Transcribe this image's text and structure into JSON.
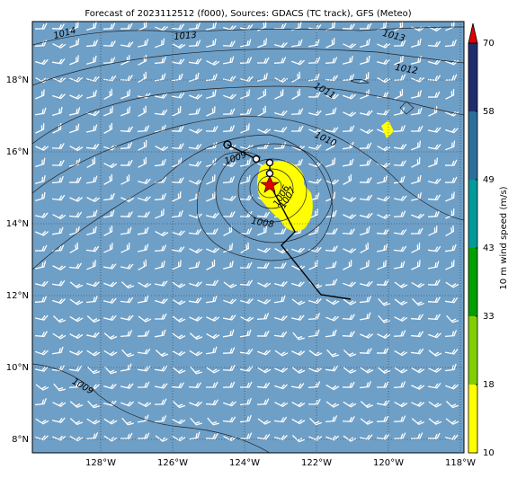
{
  "map": {
    "title": "Forecast of 2023112512 (f000), Sources: GDACS (TC track), GFS (Meteo)",
    "lon_ticks": [
      {
        "value": -128,
        "label": "128°W"
      },
      {
        "value": -126,
        "label": "126°W"
      },
      {
        "value": -124,
        "label": "124°W"
      },
      {
        "value": -122,
        "label": "122°W"
      },
      {
        "value": -120,
        "label": "120°W"
      },
      {
        "value": -118,
        "label": "118°W"
      }
    ],
    "lat_ticks": [
      {
        "value": 18,
        "label": "18°N"
      },
      {
        "value": 16,
        "label": "16°N"
      },
      {
        "value": 14,
        "label": "14°N"
      },
      {
        "value": 12,
        "label": "12°N"
      },
      {
        "value": 10,
        "label": "10°N"
      },
      {
        "value": 8,
        "label": "8°N"
      }
    ],
    "isobar_labels": [
      "1014",
      "1013",
      "1013",
      "1012",
      "1011",
      "1010",
      "1009",
      "1008",
      "1007",
      "1006",
      "1009"
    ],
    "colorbar": {
      "label": "10 m wind speed (m/s)",
      "ticks": [
        10,
        18,
        33,
        43,
        49,
        58,
        70
      ],
      "colors": [
        "#ffff00",
        "#80d000",
        "#00a000",
        "#009a9a",
        "#2a6e9c",
        "#1f2d6e"
      ],
      "extend_color": "#e00000"
    }
  }
}
